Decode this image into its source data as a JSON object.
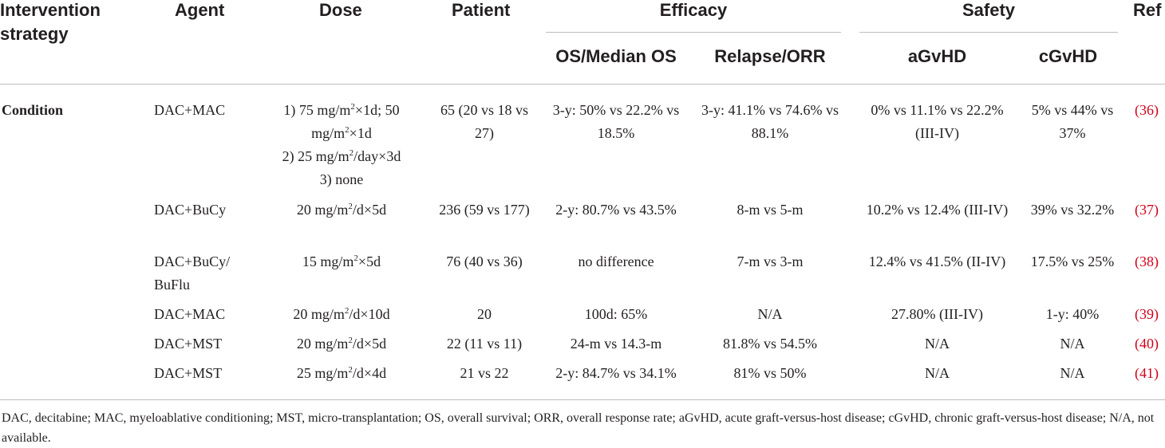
{
  "header": {
    "intervention": "Intervention strategy",
    "agent": "Agent",
    "dose": "Dose",
    "patient": "Patient",
    "efficacy": "Efficacy",
    "safety": "Safety",
    "ref": "Ref",
    "os": "OS/Median OS",
    "relapse": "Relapse/ORR",
    "agvhd": "aGvHD",
    "cgvhd": "cGvHD"
  },
  "strategy": "Condition",
  "dose_unit": "mg/m",
  "dose_sup": "2",
  "rows": [
    {
      "agent": "DAC+MAC",
      "dose_l1a": "1) 75 ",
      "dose_l1b": "×1d; 50",
      "dose_l2b": "×1d",
      "dose_l3a": "2) 25 ",
      "dose_l3b": "/day×3d",
      "dose_l4": "3) none",
      "patient": "65 (20 vs 18 vs 27)",
      "os": "3-y: 50% vs 22.2% vs 18.5%",
      "relapse": "3-y: 41.1% vs 74.6% vs 88.1%",
      "agvhd": "0% vs 11.1% vs 22.2% (III-IV)",
      "cgvhd": "5% vs 44% vs 37%",
      "ref": "(36)"
    },
    {
      "agent": "DAC+BuCy",
      "dose_a": "20 ",
      "dose_b": "/d×5d",
      "patient": "236 (59 vs 177)",
      "os": "2-y: 80.7% vs 43.5%",
      "relapse": "8-m vs 5-m",
      "agvhd": "10.2% vs 12.4% (III-IV)",
      "cgvhd": "39% vs 32.2%",
      "ref": "(37)"
    },
    {
      "agent": "DAC+BuCy/ BuFlu",
      "dose_a": "15 ",
      "dose_b": "×5d",
      "patient": "76 (40 vs 36)",
      "os": "no difference",
      "relapse": "7-m vs 3-m",
      "agvhd": "12.4% vs 41.5% (II-IV)",
      "cgvhd": "17.5% vs 25%",
      "ref": "(38)"
    },
    {
      "agent": "DAC+MAC",
      "dose_a": "20 ",
      "dose_b": "/d×10d",
      "patient": "20",
      "os": "100d: 65%",
      "relapse": "N/A",
      "agvhd": "27.80% (III-IV)",
      "cgvhd": "1-y: 40%",
      "ref": "(39)"
    },
    {
      "agent": "DAC+MST",
      "dose_a": "20 ",
      "dose_b": "/d×5d",
      "patient": "22 (11 vs 11)",
      "os": "24-m vs 14.3-m",
      "relapse": "81.8% vs 54.5%",
      "agvhd": "N/A",
      "cgvhd": "N/A",
      "ref": "(40)"
    },
    {
      "agent": "DAC+MST",
      "dose_a": "25 ",
      "dose_b": "/d×4d",
      "patient": "21 vs 22",
      "os": "2-y: 84.7% vs 34.1%",
      "relapse": "81% vs 50%",
      "agvhd": "N/A",
      "cgvhd": "N/A",
      "ref": "(41)"
    }
  ],
  "footnote": "DAC, decitabine; MAC, myeloablative conditioning; MST, micro-transplantation; OS, overall survival; ORR, overall response rate; aGvHD, acute graft-versus-host disease; cGvHD, chronic graft-versus-host disease; N/A, not available.",
  "colors": {
    "text": "#231f20",
    "rule": "#bdbdbd",
    "ref": "#d0021b"
  }
}
